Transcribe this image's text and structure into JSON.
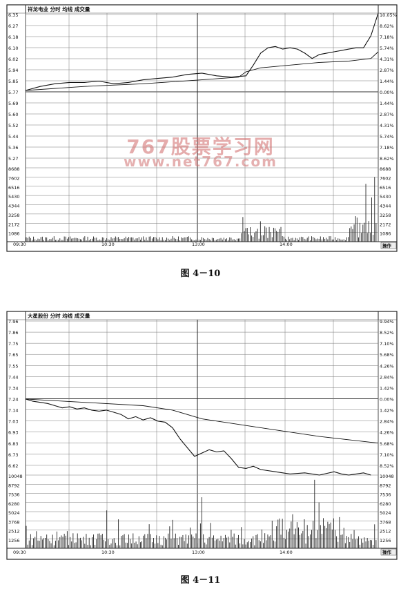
{
  "watermark": {
    "line1": "767股票学习网",
    "line2": "www.net767.com"
  },
  "chart_data": [
    {
      "type": "line",
      "title": "祥龙电业  分时  均线  成交量",
      "caption": "图 4－10",
      "corner_label": "操作",
      "x_ticks": [
        "09:30",
        "10:30",
        "13:00",
        "14:00"
      ],
      "price_axis": [
        "6.35",
        "6.27",
        "6.18",
        "6.10",
        "6.02",
        "5.94",
        "5.85",
        "5.77",
        "5.69",
        "5.60",
        "5.52",
        "5.44",
        "5.36",
        "5.27"
      ],
      "pct_axis": [
        "10.05%",
        "8.62%",
        "7.18%",
        "5.74%",
        "4.31%",
        "2.87%",
        "1.44%",
        "0.00%",
        "1.44%",
        "2.87%",
        "4.31%",
        "5.74%",
        "7.18%",
        "8.62%"
      ],
      "ylim": [
        5.19,
        6.35
      ],
      "volume_axis": [
        "8688",
        "7602",
        "6516",
        "5430",
        "4344",
        "3258",
        "2172",
        "1086"
      ],
      "volume_ylim": [
        0,
        8688
      ],
      "series": [
        {
          "name": "分时",
          "x": [
            0,
            10,
            20,
            30,
            40,
            50,
            60,
            70,
            80,
            90,
            100,
            110,
            120,
            130,
            140,
            150,
            155,
            160,
            165,
            170,
            175,
            180,
            185,
            190,
            195,
            200,
            205,
            210,
            215,
            220,
            225,
            230,
            235,
            240
          ],
          "y": [
            5.77,
            5.8,
            5.82,
            5.83,
            5.83,
            5.84,
            5.82,
            5.83,
            5.85,
            5.86,
            5.87,
            5.89,
            5.9,
            5.88,
            5.87,
            5.88,
            5.96,
            6.05,
            6.09,
            6.1,
            6.08,
            6.09,
            6.08,
            6.05,
            6.01,
            6.04,
            6.05,
            6.06,
            6.07,
            6.08,
            6.09,
            6.09,
            6.18,
            6.35
          ]
        },
        {
          "name": "均线",
          "x": [
            0,
            40,
            80,
            120,
            145,
            150,
            160,
            180,
            200,
            220,
            235,
            240
          ],
          "y": [
            5.77,
            5.8,
            5.82,
            5.85,
            5.87,
            5.91,
            5.94,
            5.96,
            5.98,
            5.99,
            6.01,
            6.06
          ]
        }
      ]
    },
    {
      "type": "line",
      "title": "大星股份  分时  均线  成交量",
      "caption": "图 4－11",
      "corner_label": "操作",
      "x_ticks": [
        "09:30",
        "10:30",
        "13:00",
        "14:00"
      ],
      "price_axis": [
        "7.96",
        "7.86",
        "7.75",
        "7.65",
        "7.55",
        "7.44",
        "7.34",
        "7.24",
        "7.14",
        "7.03",
        "6.93",
        "6.83",
        "6.73",
        "6.62"
      ],
      "pct_axis": [
        "9.94%",
        "8.52%",
        "7.10%",
        "5.68%",
        "4.26%",
        "2.84%",
        "1.42%",
        "0.00%",
        "1.42%",
        "2.84%",
        "4.26%",
        "5.68%",
        "7.10%",
        "8.52%"
      ],
      "ylim": [
        6.55,
        7.96
      ],
      "volume_axis": [
        "10048",
        "8792",
        "7536",
        "6280",
        "5024",
        "3768",
        "2512",
        "1256"
      ],
      "volume_ylim": [
        0,
        10048
      ],
      "series": [
        {
          "name": "分时",
          "x": [
            0,
            5,
            10,
            15,
            20,
            25,
            30,
            35,
            40,
            45,
            50,
            55,
            60,
            65,
            70,
            75,
            80,
            85,
            90,
            95,
            100,
            105,
            110,
            115,
            120,
            125,
            130,
            135,
            140,
            145,
            150,
            155,
            160,
            170,
            180,
            190,
            200,
            210,
            215,
            220,
            225,
            230,
            235
          ],
          "y": [
            7.24,
            7.22,
            7.21,
            7.2,
            7.18,
            7.16,
            7.17,
            7.15,
            7.16,
            7.14,
            7.13,
            7.14,
            7.12,
            7.1,
            7.06,
            7.08,
            7.05,
            7.07,
            7.04,
            7.03,
            6.98,
            6.88,
            6.8,
            6.72,
            6.75,
            6.78,
            6.76,
            6.77,
            6.7,
            6.62,
            6.61,
            6.63,
            6.6,
            6.58,
            6.56,
            6.57,
            6.55,
            6.58,
            6.56,
            6.55,
            6.56,
            6.57,
            6.55
          ]
        },
        {
          "name": "均线",
          "x": [
            0,
            40,
            80,
            100,
            120,
            160,
            200,
            240
          ],
          "y": [
            7.24,
            7.21,
            7.18,
            7.14,
            7.06,
            6.98,
            6.9,
            6.84
          ]
        }
      ]
    }
  ]
}
